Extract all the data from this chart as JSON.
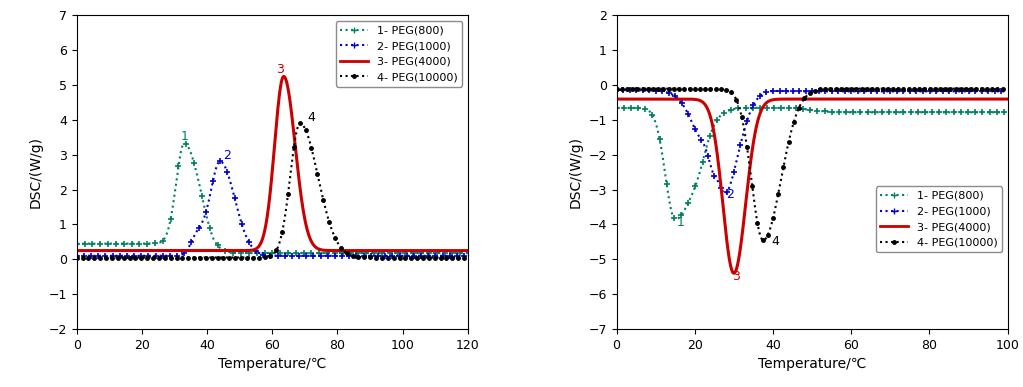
{
  "left_plot": {
    "xlim": [
      0,
      120
    ],
    "ylim": [
      -2,
      7
    ],
    "xlabel": "Temperature/℃",
    "ylabel": "DSC/(W/g)",
    "yticks": [
      -2,
      -1,
      0,
      1,
      2,
      3,
      4,
      5,
      6,
      7
    ],
    "xticks": [
      0,
      20,
      40,
      60,
      80,
      100,
      120
    ],
    "legend": [
      "1- PEG(800)",
      "2- PEG(1000)",
      "3- PEG(4000)",
      "4- PEG(10000)"
    ]
  },
  "right_plot": {
    "xlim": [
      0,
      100
    ],
    "ylim": [
      -7,
      2
    ],
    "xlabel": "Temperature/℃",
    "ylabel": "DSC/(W/g)",
    "yticks": [
      -7,
      -6,
      -5,
      -4,
      -3,
      -2,
      -1,
      0,
      1,
      2
    ],
    "xticks": [
      0,
      20,
      40,
      60,
      80,
      100
    ],
    "legend": [
      "1- PEG(800)",
      "2- PEG(1000)",
      "3- PEG(4000)",
      "4- PEG(10000)"
    ]
  },
  "colors": {
    "peg800": "#008060",
    "peg1000": "#0000cc",
    "peg4000": "#cc0000",
    "peg10000": "#000000",
    "flat_red": "#cc0000",
    "flat_blue": "#0000cc",
    "flat_black": "#000000"
  },
  "background_color": "#ffffff",
  "legend_fontsize": 8,
  "axis_fontsize": 10,
  "tick_fontsize": 9
}
